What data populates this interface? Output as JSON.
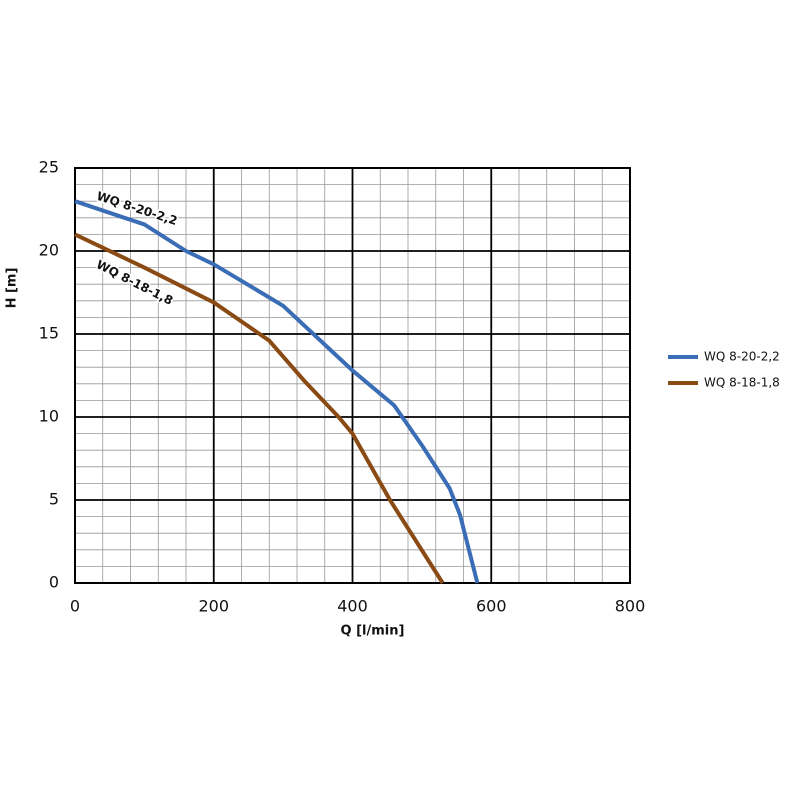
{
  "chart_data": {
    "type": "line",
    "xlabel": "Q [l/min]",
    "ylabel": "H [m]",
    "xlim": [
      0,
      800
    ],
    "ylim": [
      0,
      25
    ],
    "xticks": [
      0,
      200,
      400,
      600,
      800
    ],
    "yticks": [
      0,
      5,
      10,
      15,
      20,
      25
    ],
    "minor_xticks": [
      40,
      80,
      120,
      160,
      240,
      280,
      320,
      360,
      440,
      480,
      520,
      560,
      640,
      680,
      720,
      760
    ],
    "minor_yticks": [
      1,
      2,
      3,
      4,
      6,
      7,
      8,
      9,
      11,
      12,
      13,
      14,
      16,
      17,
      18,
      19,
      21,
      22,
      23,
      24
    ],
    "grid": true,
    "legend": "right",
    "series": [
      {
        "name": "WQ 8-20-2,2",
        "color": "#3a6db5",
        "x": [
          0,
          100,
          160,
          200,
          300,
          400,
          460,
          500,
          540,
          555,
          580
        ],
        "values": [
          23,
          21.6,
          20,
          19.2,
          16.7,
          12.8,
          10.7,
          8.3,
          5.7,
          4.1,
          0
        ]
      },
      {
        "name": "WQ 8-18-1,8",
        "color": "#8a4a14",
        "x": [
          0,
          100,
          200,
          280,
          330,
          380,
          400,
          454,
          530
        ],
        "values": [
          21,
          19,
          16.9,
          14.6,
          12.2,
          10,
          9,
          5,
          0
        ]
      }
    ]
  }
}
